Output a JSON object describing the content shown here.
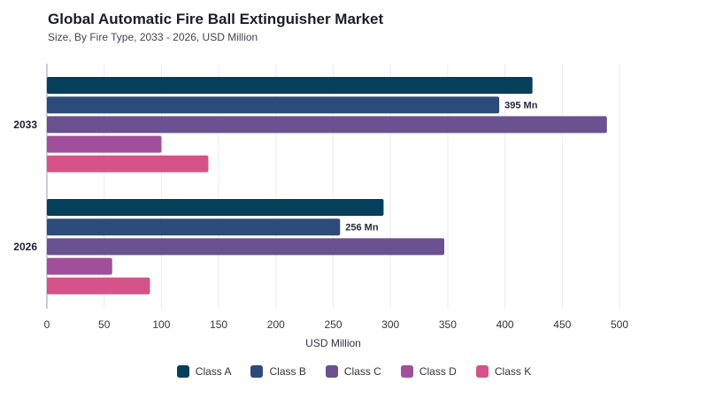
{
  "header": {
    "title": "Global Automatic Fire Ball Extinguisher Market",
    "subtitle": "Size, By Fire Type, 2033 - 2026, USD Million"
  },
  "chart_data": {
    "type": "bar",
    "orientation": "horizontal",
    "categories": [
      "2033",
      "2026"
    ],
    "series": [
      {
        "name": "Class A",
        "values": [
          424,
          294
        ],
        "color": "#063f5c"
      },
      {
        "name": "Class B",
        "values": [
          395,
          256
        ],
        "color": "#2d4b7a"
      },
      {
        "name": "Class C",
        "values": [
          489,
          347
        ],
        "color": "#6a5190"
      },
      {
        "name": "Class D",
        "values": [
          100,
          57
        ],
        "color": "#a0509a"
      },
      {
        "name": "Class K",
        "values": [
          141,
          90
        ],
        "color": "#d6538a"
      }
    ],
    "data_labels": [
      {
        "category": "2033",
        "series": "Class B",
        "text": "395 Mn"
      },
      {
        "category": "2026",
        "series": "Class B",
        "text": "256 Mn"
      }
    ],
    "xlabel": "USD Million",
    "ylabel": "",
    "xlim": [
      0,
      500
    ],
    "xticks": [
      0,
      50,
      100,
      150,
      200,
      250,
      300,
      350,
      400,
      450,
      500
    ],
    "grid": true,
    "legend_position": "bottom"
  }
}
